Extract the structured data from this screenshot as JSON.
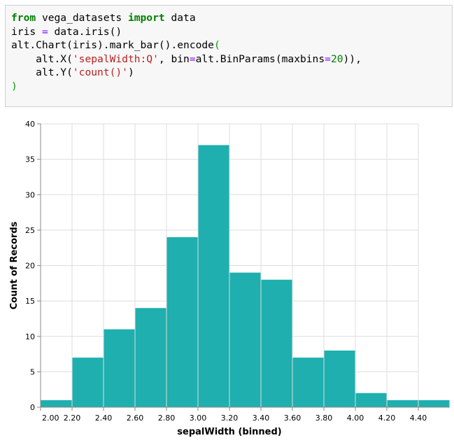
{
  "code_cell": {
    "line1": {
      "kw1": "from",
      "mod": " vega_datasets ",
      "kw2": "import",
      "rest": " data"
    },
    "line2": {
      "a": "iris ",
      "eq": "=",
      "b": " data.iris()"
    },
    "line3": {
      "a": "alt.Chart(iris).mark_bar().encode",
      "p": "("
    },
    "line4": {
      "a": "    alt.X(",
      "s": "'sepalWidth:Q'",
      "b": ", bin",
      "eq": "=",
      "c": "alt.BinParams(maxbins",
      "eq2": "=",
      "n": "20",
      "d": ")),"
    },
    "line5": {
      "a": "    alt.Y(",
      "s": "'count()'",
      "b": ")"
    },
    "line6": {
      "p": ")"
    }
  },
  "chart_data": {
    "type": "bar",
    "xlabel": "sepalWidth (binned)",
    "ylabel": "Count of Records",
    "bin_step": 0.2,
    "x_domain": [
      2.0,
      4.6
    ],
    "bins": [
      {
        "start": 2.0,
        "end": 2.2,
        "count": 1
      },
      {
        "start": 2.2,
        "end": 2.4,
        "count": 7
      },
      {
        "start": 2.4,
        "end": 2.6,
        "count": 11
      },
      {
        "start": 2.6,
        "end": 2.8,
        "count": 14
      },
      {
        "start": 2.8,
        "end": 3.0,
        "count": 24
      },
      {
        "start": 3.0,
        "end": 3.2,
        "count": 37
      },
      {
        "start": 3.2,
        "end": 3.4,
        "count": 19
      },
      {
        "start": 3.4,
        "end": 3.6,
        "count": 18
      },
      {
        "start": 3.6,
        "end": 3.8,
        "count": 7
      },
      {
        "start": 3.8,
        "end": 4.0,
        "count": 8
      },
      {
        "start": 4.0,
        "end": 4.2,
        "count": 2
      },
      {
        "start": 4.2,
        "end": 4.4,
        "count": 1
      },
      {
        "start": 4.4,
        "end": 4.6,
        "count": 1
      }
    ],
    "x_tick_labels": [
      {
        "label": "2.00",
        "value": 2.0
      },
      {
        "label": "2.20",
        "value": 2.2
      },
      {
        "label": "2.40",
        "value": 2.4
      },
      {
        "label": "2.60",
        "value": 2.6
      },
      {
        "label": "2.80",
        "value": 2.8
      },
      {
        "label": "3.00",
        "value": 3.0
      },
      {
        "label": "3.20",
        "value": 3.2
      },
      {
        "label": "3.40",
        "value": 3.4
      },
      {
        "label": "3.60",
        "value": 3.6
      },
      {
        "label": "3.80",
        "value": 3.8
      },
      {
        "label": "4.00",
        "value": 4.0
      },
      {
        "label": "4.20",
        "value": 4.2
      },
      {
        "label": "4.40",
        "value": 4.4
      }
    ],
    "y_ticks": [
      0,
      5,
      10,
      15,
      20,
      25,
      30,
      35,
      40
    ],
    "ylim": [
      0,
      40
    ],
    "grid": true,
    "bar_color": "#1fafaf"
  }
}
